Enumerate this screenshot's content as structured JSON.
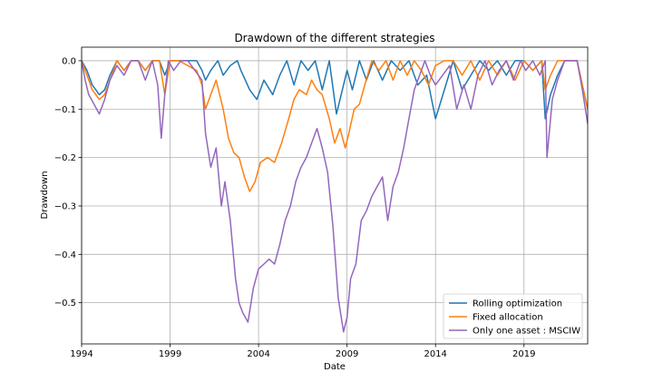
{
  "chart_data": {
    "type": "line",
    "title": "Drawdown of the different strategies",
    "xlabel": "Date",
    "ylabel": "Drawdown",
    "xlim": [
      1994.0,
      2022.6
    ],
    "ylim": [
      -0.585,
      0.028
    ],
    "grid": true,
    "legend_position": "lower-right",
    "x_ticks": [
      1994,
      1999,
      2004,
      2009,
      2014,
      2019
    ],
    "x_tick_labels": [
      "1994",
      "1999",
      "2004",
      "2009",
      "2014",
      "2019"
    ],
    "y_ticks": [
      0.0,
      -0.1,
      -0.2,
      -0.3,
      -0.4,
      -0.5
    ],
    "y_tick_labels": [
      "0.0",
      "−0.1",
      "−0.2",
      "−0.3",
      "−0.4",
      "−0.5"
    ],
    "series": [
      {
        "name": "Rolling optimization",
        "color": "#1f77b4",
        "x": [
          1994.0,
          1994.3,
          1994.6,
          1995.0,
          1995.3,
          1995.6,
          1996.0,
          1996.4,
          1996.8,
          1997.2,
          1997.6,
          1998.0,
          1998.4,
          1998.7,
          1999.0,
          1999.5,
          2000.0,
          2000.5,
          2000.8,
          2001.0,
          2001.3,
          2001.7,
          2002.0,
          2002.4,
          2002.8,
          2003.0,
          2003.5,
          2003.9,
          2004.3,
          2004.8,
          2005.2,
          2005.6,
          2006.0,
          2006.4,
          2006.8,
          2007.2,
          2007.6,
          2008.0,
          2008.4,
          2008.8,
          2009.0,
          2009.3,
          2009.7,
          2010.1,
          2010.5,
          2011.0,
          2011.5,
          2012.0,
          2012.5,
          2013.0,
          2013.5,
          2014.0,
          2014.5,
          2015.0,
          2015.5,
          2016.0,
          2016.5,
          2017.0,
          2017.5,
          2018.0,
          2018.5,
          2019.0,
          2019.5,
          2020.0,
          2020.2,
          2020.5,
          2020.9,
          2021.3,
          2021.7,
          2022.0,
          2022.3,
          2022.6
        ],
        "y": [
          0.0,
          -0.02,
          -0.05,
          -0.07,
          -0.06,
          -0.03,
          0.0,
          -0.02,
          0.0,
          0.0,
          -0.02,
          0.0,
          0.0,
          -0.03,
          0.0,
          0.0,
          0.0,
          0.0,
          -0.02,
          -0.04,
          -0.02,
          0.0,
          -0.03,
          -0.01,
          0.0,
          -0.02,
          -0.06,
          -0.08,
          -0.04,
          -0.07,
          -0.03,
          0.0,
          -0.05,
          0.0,
          -0.02,
          0.0,
          -0.06,
          0.0,
          -0.11,
          -0.05,
          -0.02,
          -0.06,
          0.0,
          -0.04,
          0.0,
          -0.04,
          0.0,
          -0.02,
          0.0,
          -0.05,
          -0.03,
          -0.12,
          -0.06,
          0.0,
          -0.06,
          -0.03,
          0.0,
          -0.02,
          0.0,
          -0.03,
          0.0,
          0.0,
          -0.02,
          0.0,
          -0.12,
          -0.07,
          -0.03,
          0.0,
          0.0,
          0.0,
          -0.05,
          -0.1
        ]
      },
      {
        "name": "Fixed allocation",
        "color": "#ff7f0e",
        "x": [
          1994.0,
          1994.3,
          1994.6,
          1995.0,
          1995.3,
          1995.6,
          1996.0,
          1996.4,
          1996.8,
          1997.2,
          1997.6,
          1998.0,
          1998.4,
          1998.7,
          1999.0,
          1999.5,
          2000.0,
          2000.5,
          2000.8,
          2001.0,
          2001.3,
          2001.6,
          2002.0,
          2002.3,
          2002.6,
          2002.9,
          2003.2,
          2003.5,
          2003.8,
          2004.1,
          2004.5,
          2004.9,
          2005.3,
          2005.7,
          2006.0,
          2006.3,
          2006.7,
          2007.0,
          2007.3,
          2007.6,
          2008.0,
          2008.3,
          2008.6,
          2008.9,
          2009.1,
          2009.4,
          2009.7,
          2010.0,
          2010.4,
          2010.8,
          2011.2,
          2011.6,
          2012.0,
          2012.4,
          2012.8,
          2013.2,
          2013.6,
          2014.0,
          2014.5,
          2015.0,
          2015.5,
          2016.0,
          2016.5,
          2017.0,
          2017.5,
          2018.0,
          2018.5,
          2019.0,
          2019.5,
          2020.0,
          2020.2,
          2020.5,
          2020.9,
          2021.3,
          2021.7,
          2022.0,
          2022.3,
          2022.6
        ],
        "y": [
          0.0,
          -0.03,
          -0.06,
          -0.08,
          -0.07,
          -0.04,
          0.0,
          -0.02,
          0.0,
          0.0,
          -0.02,
          0.0,
          0.0,
          -0.07,
          0.0,
          0.0,
          -0.01,
          -0.02,
          -0.05,
          -0.1,
          -0.07,
          -0.04,
          -0.1,
          -0.16,
          -0.19,
          -0.2,
          -0.24,
          -0.27,
          -0.25,
          -0.21,
          -0.2,
          -0.21,
          -0.17,
          -0.12,
          -0.08,
          -0.06,
          -0.07,
          -0.04,
          -0.06,
          -0.07,
          -0.12,
          -0.17,
          -0.14,
          -0.18,
          -0.15,
          -0.1,
          -0.09,
          -0.05,
          0.0,
          -0.02,
          0.0,
          -0.04,
          0.0,
          -0.03,
          0.0,
          -0.02,
          -0.05,
          -0.01,
          0.0,
          0.0,
          -0.03,
          0.0,
          -0.04,
          0.0,
          -0.03,
          0.0,
          -0.04,
          0.0,
          -0.02,
          0.0,
          -0.06,
          -0.03,
          0.0,
          0.0,
          0.0,
          0.0,
          -0.05,
          -0.1
        ]
      },
      {
        "name": "Only one asset : MSCIW",
        "color": "#9467bd",
        "x": [
          1994.0,
          1994.2,
          1994.4,
          1994.7,
          1995.0,
          1995.3,
          1995.6,
          1996.0,
          1996.4,
          1996.8,
          1997.2,
          1997.6,
          1998.0,
          1998.3,
          1998.5,
          1998.7,
          1998.9,
          1999.2,
          1999.6,
          2000.0,
          2000.4,
          2000.8,
          2001.0,
          2001.3,
          2001.6,
          2001.9,
          2002.1,
          2002.4,
          2002.7,
          2002.9,
          2003.1,
          2003.4,
          2003.7,
          2004.0,
          2004.3,
          2004.6,
          2004.9,
          2005.2,
          2005.5,
          2005.8,
          2006.1,
          2006.4,
          2006.7,
          2007.0,
          2007.3,
          2007.6,
          2007.9,
          2008.2,
          2008.5,
          2008.8,
          2009.0,
          2009.2,
          2009.5,
          2009.8,
          2010.1,
          2010.4,
          2010.7,
          2011.0,
          2011.3,
          2011.6,
          2011.9,
          2012.2,
          2012.5,
          2012.8,
          2013.1,
          2013.4,
          2013.7,
          2014.0,
          2014.4,
          2014.8,
          2015.2,
          2015.6,
          2016.0,
          2016.4,
          2016.8,
          2017.2,
          2017.6,
          2018.0,
          2018.4,
          2018.8,
          2019.1,
          2019.5,
          2019.9,
          2020.2,
          2020.3,
          2020.6,
          2020.9,
          2021.3,
          2021.7,
          2022.0,
          2022.3,
          2022.6
        ],
        "y": [
          0.0,
          -0.04,
          -0.07,
          -0.09,
          -0.11,
          -0.08,
          -0.04,
          -0.01,
          -0.03,
          0.0,
          0.0,
          -0.04,
          0.0,
          -0.05,
          -0.16,
          -0.07,
          0.0,
          -0.02,
          0.0,
          0.0,
          -0.02,
          -0.04,
          -0.15,
          -0.22,
          -0.18,
          -0.3,
          -0.25,
          -0.33,
          -0.45,
          -0.5,
          -0.52,
          -0.54,
          -0.47,
          -0.43,
          -0.42,
          -0.41,
          -0.42,
          -0.38,
          -0.33,
          -0.3,
          -0.25,
          -0.22,
          -0.2,
          -0.17,
          -0.14,
          -0.18,
          -0.23,
          -0.34,
          -0.49,
          -0.56,
          -0.53,
          -0.45,
          -0.42,
          -0.33,
          -0.31,
          -0.28,
          -0.26,
          -0.24,
          -0.33,
          -0.26,
          -0.23,
          -0.18,
          -0.12,
          -0.06,
          -0.03,
          0.0,
          -0.03,
          -0.05,
          -0.03,
          -0.01,
          -0.1,
          -0.05,
          -0.1,
          -0.03,
          0.0,
          -0.05,
          -0.02,
          0.0,
          -0.04,
          0.0,
          -0.02,
          0.0,
          -0.03,
          0.0,
          -0.2,
          -0.08,
          -0.04,
          0.0,
          0.0,
          0.0,
          -0.06,
          -0.13
        ]
      }
    ]
  }
}
